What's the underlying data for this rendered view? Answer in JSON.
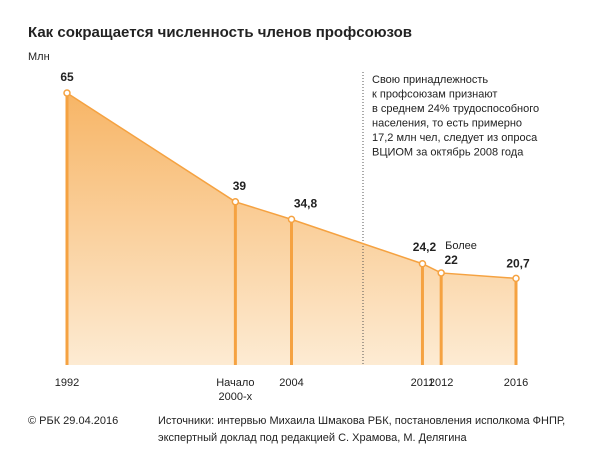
{
  "chart_data": {
    "type": "area",
    "title": "Как сокращается численность членов профсоюзов",
    "subtitle": "Млн",
    "x": [
      1992,
      2001,
      2004,
      2011,
      2012,
      2016
    ],
    "values": [
      65,
      39,
      34.8,
      24.2,
      22,
      20.7
    ],
    "value_labels": [
      "65",
      "39",
      "34,8",
      "24,2",
      "22",
      "20,7"
    ],
    "xlim": [
      1992,
      2016
    ],
    "xticks": [
      1992,
      {
        "value": 2001,
        "label": "Начало 2000-х"
      },
      2004,
      2011,
      2012,
      2016
    ],
    "ylim": [
      0,
      65
    ],
    "color": "#f5a241",
    "point_note": "Более",
    "annotation": [
      "Свою принадлежность",
      "к профсоюзам признают",
      "в среднем 24% трудоспособного",
      "населения, то есть примерно",
      "17,2 млн чел, следует из опроса",
      "ВЦИОМ за октябрь 2008 года"
    ],
    "credit": "© РБК 29.04.2016",
    "sources": [
      "Источники: интервью Михаила Шмакова РБК, постановления исполкома ФНПР,",
      "экспертный доклад под редакцией С. Храмова, М. Делягина"
    ]
  }
}
